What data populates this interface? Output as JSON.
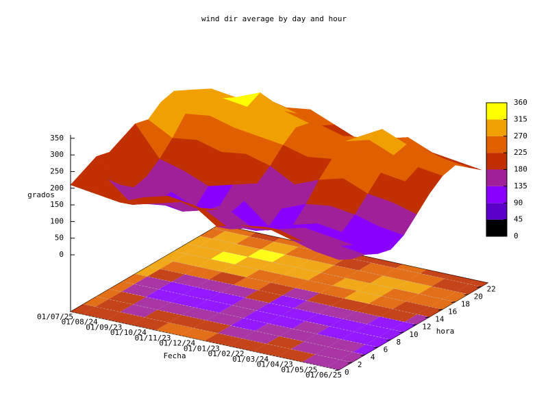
{
  "chart_data": {
    "type": "surface3d",
    "title": "wind dir average by day and hour",
    "xlabel": "Fecha",
    "ylabel": "hora",
    "zlabel": "grados",
    "x": [
      "01/07/25",
      "01/08/24",
      "01/09/23",
      "01/10/24",
      "01/11/23",
      "01/12/24",
      "01/01/23",
      "01/02/22",
      "01/03/24",
      "01/04/23",
      "01/05/25",
      "01/06/25"
    ],
    "y": [
      0,
      2,
      4,
      6,
      8,
      10,
      12,
      14,
      16,
      18,
      20,
      22
    ],
    "ylim": [
      0,
      23
    ],
    "yticks": [
      0,
      2,
      4,
      6,
      8,
      10,
      12,
      14,
      16,
      18,
      20,
      22
    ],
    "zlim": [
      0,
      360
    ],
    "zticks": [
      0,
      50,
      100,
      150,
      200,
      250,
      300,
      350
    ],
    "z": [
      [
        210,
        230,
        250,
        240,
        260,
        280,
        270,
        300,
        310,
        290,
        260,
        240
      ],
      [
        200,
        220,
        180,
        150,
        160,
        190,
        230,
        280,
        300,
        310,
        270,
        230
      ],
      [
        190,
        160,
        140,
        120,
        130,
        170,
        240,
        290,
        320,
        300,
        250,
        210
      ],
      [
        220,
        180,
        150,
        110,
        100,
        140,
        220,
        270,
        310,
        330,
        280,
        240
      ],
      [
        240,
        200,
        160,
        130,
        120,
        160,
        230,
        260,
        300,
        290,
        260,
        250
      ],
      [
        230,
        190,
        170,
        140,
        150,
        180,
        210,
        250,
        280,
        270,
        240,
        220
      ],
      [
        180,
        150,
        130,
        100,
        90,
        120,
        170,
        230,
        260,
        250,
        220,
        190
      ],
      [
        200,
        170,
        140,
        120,
        110,
        150,
        200,
        240,
        270,
        260,
        230,
        210
      ],
      [
        210,
        180,
        160,
        140,
        130,
        160,
        220,
        270,
        290,
        300,
        250,
        230
      ],
      [
        190,
        160,
        150,
        130,
        120,
        150,
        190,
        230,
        260,
        270,
        240,
        200
      ],
      [
        170,
        150,
        140,
        120,
        110,
        130,
        180,
        220,
        240,
        250,
        220,
        190
      ],
      [
        160,
        140,
        130,
        110,
        100,
        120,
        160,
        200,
        230,
        240,
        210,
        180
      ]
    ],
    "cblim": [
      0,
      360
    ],
    "cbticks": [
      0,
      45,
      90,
      135,
      180,
      225,
      270,
      315,
      360
    ],
    "palette": [
      "#000000",
      "#5a00c8",
      "#8a00ff",
      "#a0209a",
      "#c03000",
      "#e06000",
      "#f0a000",
      "#ffff00"
    ],
    "grid": true
  }
}
